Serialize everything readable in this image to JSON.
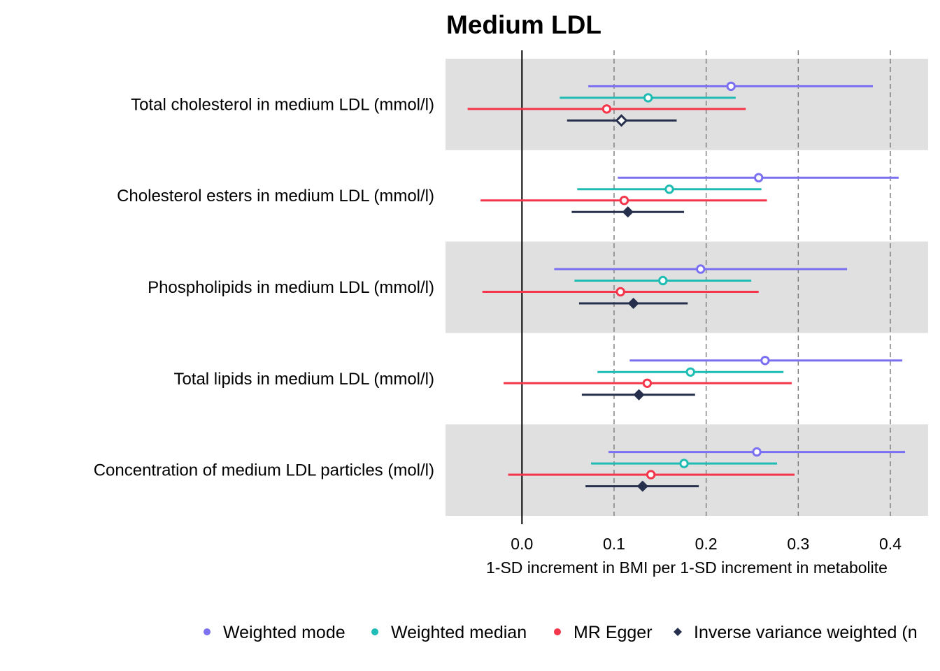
{
  "chart_data": {
    "type": "forest",
    "title": "Medium LDL",
    "xlabel": "1-SD increment in BMI per 1-SD increment in metabolite",
    "ylabel": "",
    "xlim": [
      -0.083,
      0.441
    ],
    "xticks": [
      "0.0",
      "0.1",
      "0.2",
      "0.3",
      "0.4"
    ],
    "xtick_values": [
      0,
      0.1,
      0.2,
      0.3,
      0.4
    ],
    "reference_line": 0,
    "grid": "dashed vertical at ticks",
    "legend_position": "bottom",
    "categories": [
      "Total cholesterol in medium LDL (mmol/l)",
      "Cholesterol esters in medium LDL (mmol/l)",
      "Phospholipids in medium LDL (mmol/l)",
      "Total lipids in medium LDL (mmol/l)",
      "Concentration of medium LDL particles (mol/l)"
    ],
    "series": [
      {
        "name": "Weighted mode",
        "color": "#7b6ff2",
        "marker": "circle",
        "estimates": [
          0.227,
          0.257,
          0.194,
          0.264,
          0.255
        ],
        "lower": [
          0.072,
          0.104,
          0.035,
          0.117,
          0.094
        ],
        "upper": [
          0.381,
          0.409,
          0.353,
          0.413,
          0.416
        ]
      },
      {
        "name": "Weighted median",
        "color": "#1fbcb4",
        "marker": "circle",
        "estimates": [
          0.137,
          0.16,
          0.153,
          0.183,
          0.176
        ],
        "lower": [
          0.041,
          0.06,
          0.057,
          0.082,
          0.075
        ],
        "upper": [
          0.232,
          0.26,
          0.249,
          0.284,
          0.277
        ]
      },
      {
        "name": "MR Egger",
        "color": "#f5364a",
        "marker": "circle",
        "estimates": [
          0.092,
          0.111,
          0.107,
          0.136,
          0.14
        ],
        "lower": [
          -0.059,
          -0.045,
          -0.043,
          -0.02,
          -0.015
        ],
        "upper": [
          0.243,
          0.266,
          0.257,
          0.293,
          0.296
        ]
      },
      {
        "name": "Inverse variance weighted (n",
        "color": "#26304d",
        "marker": "diamond",
        "estimates": [
          0.108,
          0.115,
          0.121,
          0.127,
          0.131
        ],
        "lower": [
          0.049,
          0.054,
          0.062,
          0.065,
          0.069
        ],
        "upper": [
          0.168,
          0.176,
          0.18,
          0.188,
          0.192
        ],
        "filled": [
          false,
          true,
          true,
          true,
          true
        ]
      }
    ]
  }
}
